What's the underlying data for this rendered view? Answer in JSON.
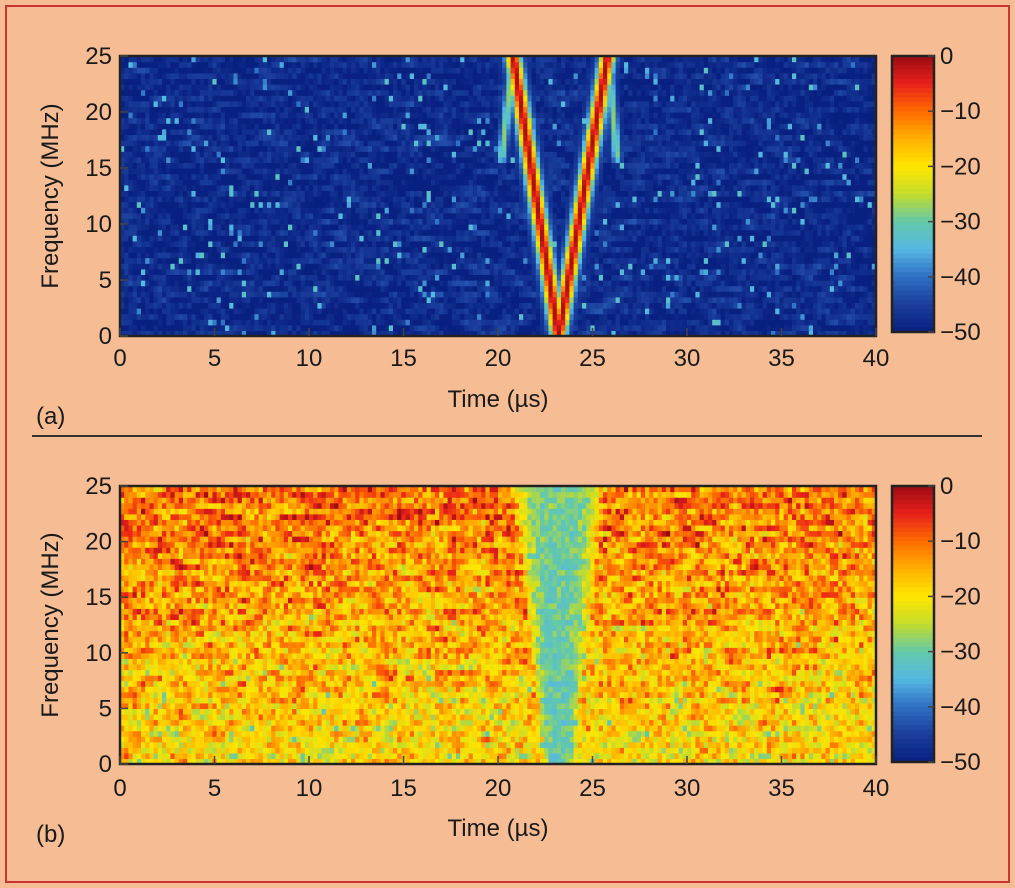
{
  "colors": {
    "background": "#f6bd94",
    "frame": "#cc3333",
    "divider": "#333333",
    "colormap": [
      "#08207f",
      "#1a3d9c",
      "#2f6fc4",
      "#55b8e3",
      "#63c9a8",
      "#c5dc2a",
      "#ffe600",
      "#ffb000",
      "#ff6a00",
      "#e8201a",
      "#9a0b14"
    ]
  },
  "chart_data": [
    {
      "type": "heatmap",
      "panel_label": "(a)",
      "title": "",
      "xlabel": "Time (µs)",
      "ylabel": "Frequency (MHz)",
      "xlim": [
        0,
        40
      ],
      "ylim": [
        0,
        25
      ],
      "x_ticks": [
        0,
        5,
        10,
        15,
        20,
        25,
        30,
        35,
        40
      ],
      "y_ticks": [
        0,
        5,
        10,
        15,
        20,
        25
      ],
      "colorbar": {
        "min": -50,
        "max": 0,
        "ticks": [
          0,
          -10,
          -20,
          -30,
          -40,
          -50
        ]
      },
      "background_level": -48,
      "noise_amplitude": 6,
      "features": [
        {
          "shape": "line",
          "from": [
            20.8,
            25
          ],
          "to": [
            23.2,
            0
          ],
          "level": -1,
          "note": "descending chirp ridge"
        },
        {
          "shape": "line",
          "from": [
            23.2,
            0
          ],
          "to": [
            25.8,
            25
          ],
          "level": -1,
          "note": "ascending chirp ridge"
        },
        {
          "shape": "line",
          "from": [
            20.2,
            16
          ],
          "to": [
            20.8,
            25
          ],
          "level": -28
        },
        {
          "shape": "line",
          "from": [
            26.3,
            16
          ],
          "to": [
            25.8,
            25
          ],
          "level": -28
        }
      ]
    },
    {
      "type": "heatmap",
      "panel_label": "(b)",
      "title": "",
      "xlabel": "Time (µs)",
      "ylabel": "Frequency (MHz)",
      "xlim": [
        0,
        40
      ],
      "ylim": [
        0,
        25
      ],
      "x_ticks": [
        0,
        5,
        10,
        15,
        20,
        25,
        30,
        35,
        40
      ],
      "y_ticks": [
        0,
        5,
        10,
        15,
        20,
        25
      ],
      "colorbar": {
        "min": -50,
        "max": 0,
        "ticks": [
          0,
          -10,
          -20,
          -30,
          -40,
          -50
        ]
      },
      "background_level_high_freq": -10,
      "background_level_low_freq": -20,
      "noise_amplitude": 12,
      "features": [
        {
          "shape": "v_notch",
          "center_x": 23.2,
          "top_half_width": 2.5,
          "bottom_half_width": 0.8,
          "level": -33,
          "note": "suppressed chirp region"
        }
      ]
    }
  ]
}
